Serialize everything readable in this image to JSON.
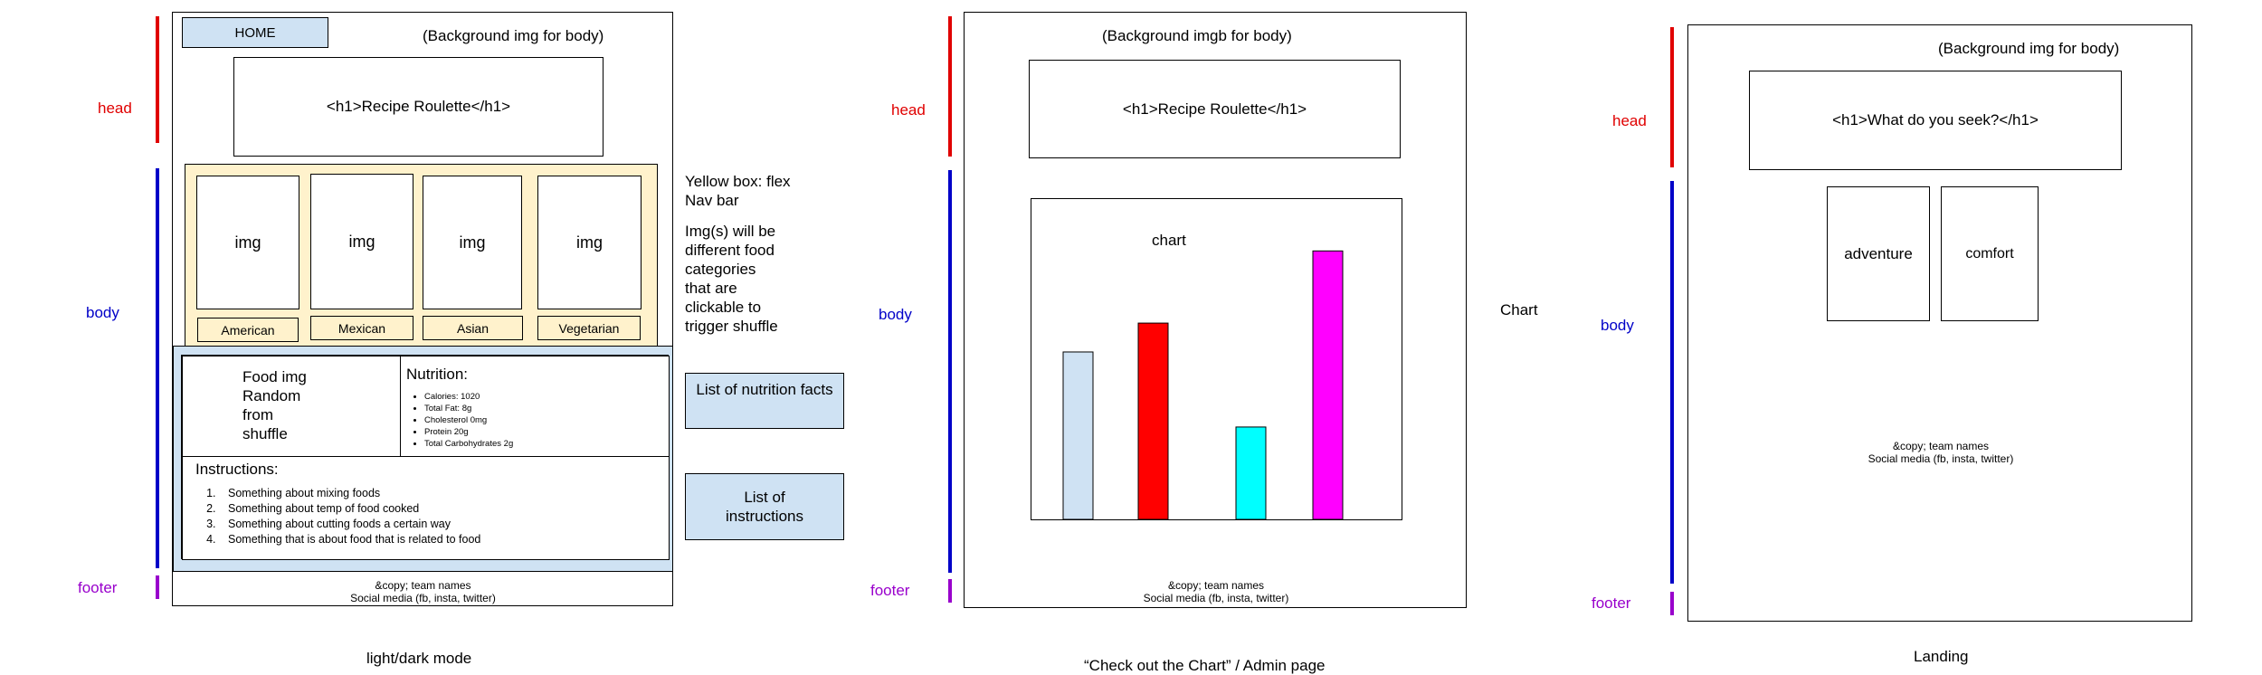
{
  "page1": {
    "side_labels": {
      "head": "head",
      "body": "body",
      "footer": "footer"
    },
    "home_button": "HOME",
    "bg_note": "(Background img for body)",
    "h1_box": "<h1>Recipe Roulette</h1>",
    "categories": [
      {
        "img": "img",
        "label": "American"
      },
      {
        "img": "img",
        "label": "Mexican"
      },
      {
        "img": "img",
        "label": "Asian"
      },
      {
        "img": "img",
        "label": "Vegetarian"
      }
    ],
    "food_img_lines": [
      "Food img",
      "Random",
      "from",
      "shuffle"
    ],
    "nutrition_title": "Nutrition:",
    "nutrition_items": [
      "Calories: 1020",
      "Total Fat: 8g",
      "Cholesterol 0mg",
      "Protein 20g",
      "Total Carbohydrates 2g"
    ],
    "instructions_title": "Instructions:",
    "instructions_items": [
      "Something about mixing foods",
      "Something about temp of food cooked",
      "Something about cutting foods a certain way",
      "Something that is about food that is related to food"
    ],
    "footer_lines": [
      "&copy; team names",
      "Social media (fb, insta, twitter)"
    ],
    "note1_lines": [
      "Yellow box: flex",
      "Nav bar"
    ],
    "note2_lines": [
      "Img(s) will be",
      "different food",
      "categories",
      "that are",
      "clickable to",
      "trigger shuffle"
    ],
    "callout_nutrition": "List of nutrition facts",
    "callout_instructions_lines": [
      "List of",
      "instructions"
    ],
    "caption": "light/dark mode"
  },
  "page2": {
    "side_labels": {
      "head": "head",
      "body": "body",
      "footer": "footer"
    },
    "bg_note": "(Background imgb for body)",
    "h1_box": "<h1>Recipe Roulette</h1>",
    "chart_label": "chart",
    "footer_lines": [
      "&copy; team names",
      "Social media (fb, insta, twitter)"
    ],
    "side_note": "Chart",
    "caption": "“Check out the Chart” / Admin page"
  },
  "page3": {
    "side_labels": {
      "head": "head",
      "body": "body",
      "footer": "footer"
    },
    "bg_note": "(Background img for body)",
    "h1_box": "<h1>What do you seek?</h1>",
    "options": [
      "adventure",
      "comfort"
    ],
    "footer_lines": [
      "&copy; team names",
      "Social media (fb, insta, twitter)"
    ],
    "caption": "Landing"
  },
  "colors": {
    "head": "#e00000",
    "body": "#0000c8",
    "footer": "#9900cc",
    "light_blue": "#cfe2f3",
    "yellow": "#fff2cc"
  },
  "chart_data": {
    "type": "bar",
    "title": "chart",
    "categories": [
      "",
      "",
      "",
      ""
    ],
    "values": [
      58,
      68,
      32,
      93
    ],
    "colors": [
      "#cfe2f3",
      "#ff0000",
      "#00ffff",
      "#ff00ff"
    ],
    "ylim": [
      0,
      100
    ],
    "grid": false
  }
}
